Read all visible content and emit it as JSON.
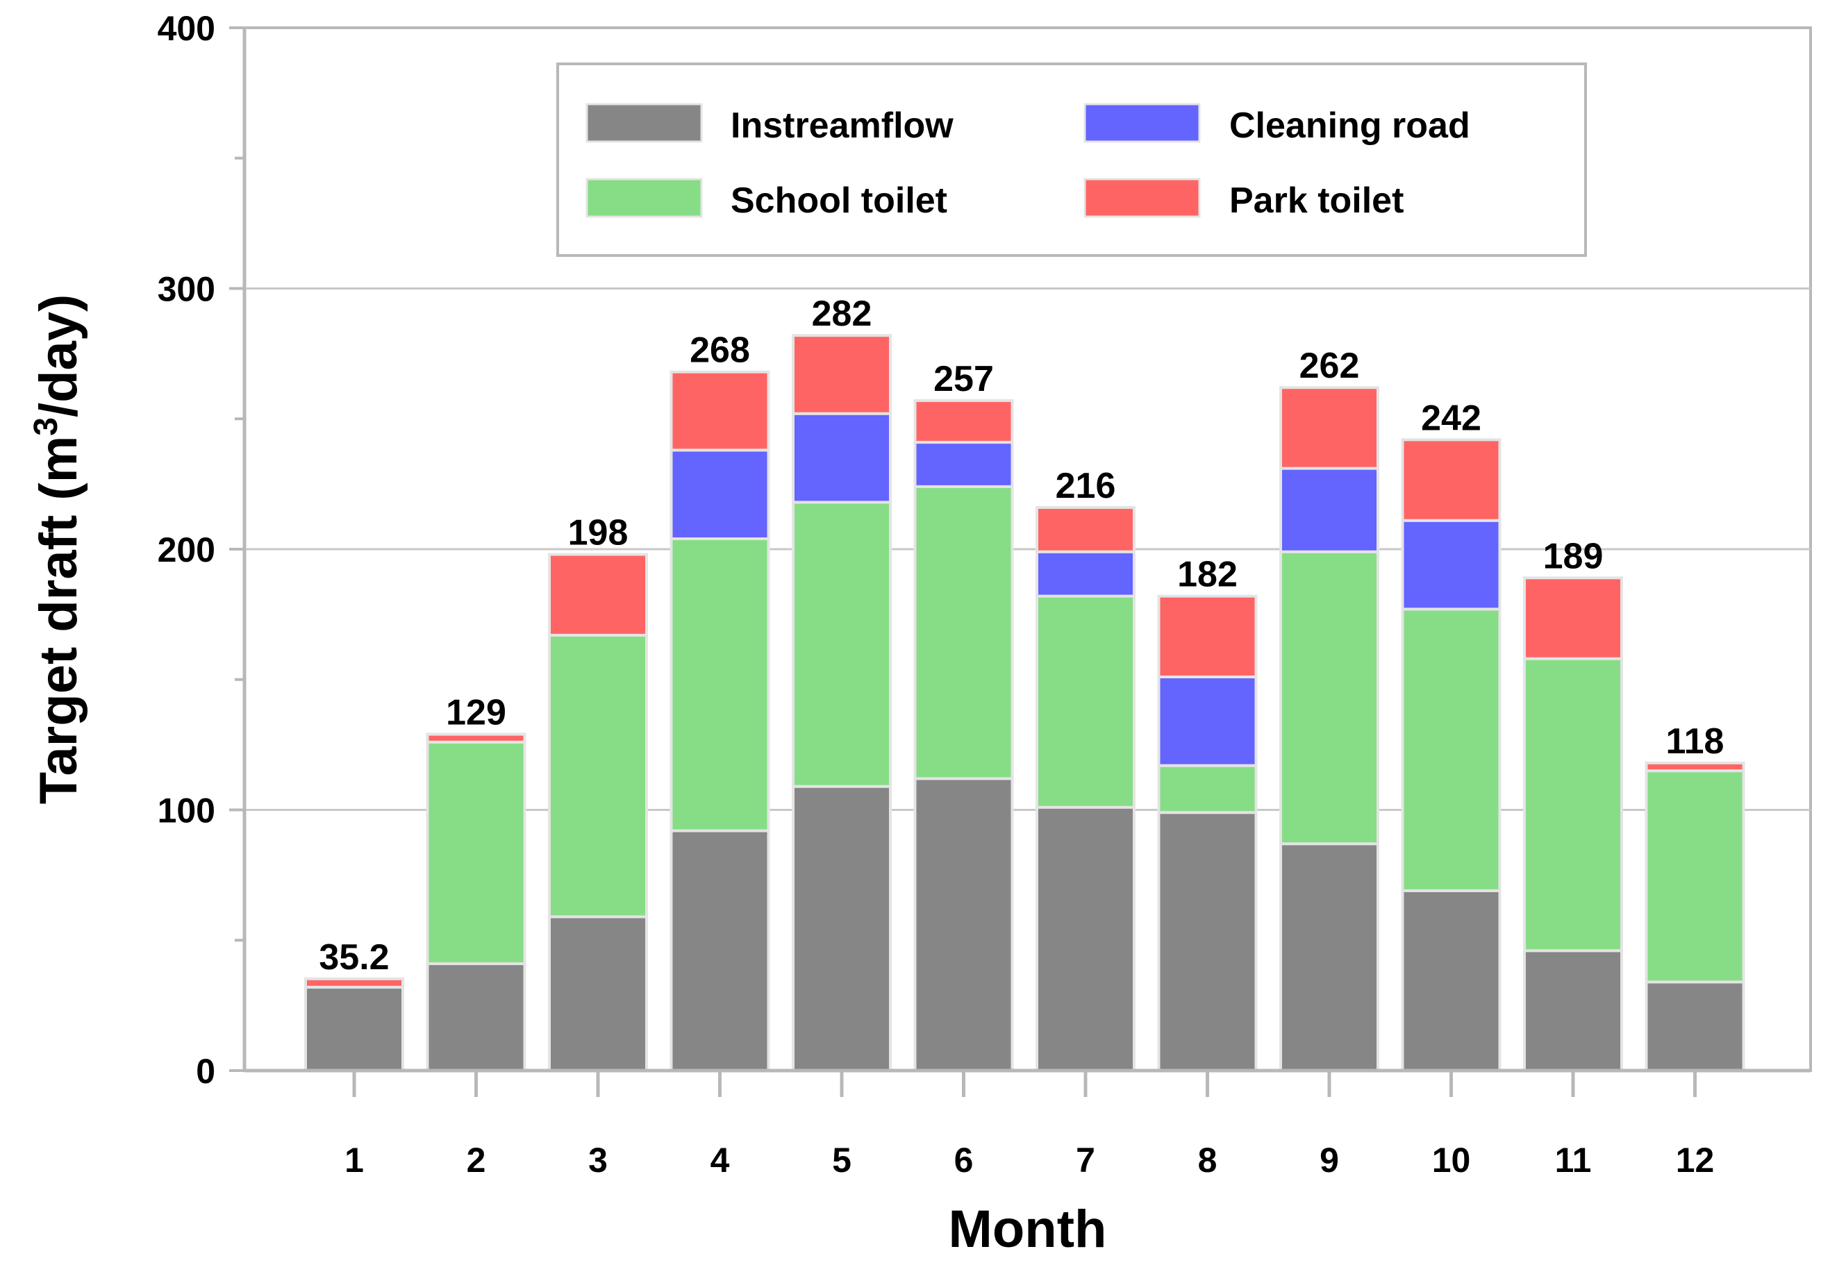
{
  "chart_data": {
    "type": "bar",
    "stacked": true,
    "xlabel": "Month",
    "ylabel_main": "Target draft (m",
    "ylabel_sup": "3",
    "ylabel_end": "/day)",
    "ylim": [
      0,
      400
    ],
    "yticks": [
      0,
      100,
      200,
      300,
      400
    ],
    "grid": true,
    "legend_position": "top-center",
    "categories": [
      "1",
      "2",
      "3",
      "4",
      "5",
      "6",
      "7",
      "8",
      "9",
      "10",
      "11",
      "12"
    ],
    "series": [
      {
        "name": "Instreamflow",
        "color": "#868686",
        "values": [
          32,
          41,
          59,
          92,
          109,
          112,
          101,
          99,
          87,
          69,
          46,
          34
        ]
      },
      {
        "name": "School toilet",
        "color": "#86dd86",
        "values": [
          0,
          85,
          108,
          112,
          109,
          112,
          81,
          18,
          112,
          108,
          112,
          81
        ]
      },
      {
        "name": "Cleaning road",
        "color": "#6464ff",
        "values": [
          0,
          0,
          0,
          34,
          34,
          17,
          17,
          34,
          32,
          34,
          0,
          0
        ]
      },
      {
        "name": "Park toilet",
        "color": "#ff6464",
        "values": [
          3.2,
          3,
          31,
          30,
          30,
          16,
          17,
          31,
          31,
          31,
          31,
          3
        ]
      }
    ],
    "totals": [
      "35.2",
      "129",
      "198",
      "268",
      "282",
      "257",
      "216",
      "182",
      "262",
      "242",
      "189",
      "118"
    ],
    "legend_order": [
      "Instreamflow",
      "Cleaning road",
      "School toilet",
      "Park toilet"
    ]
  }
}
